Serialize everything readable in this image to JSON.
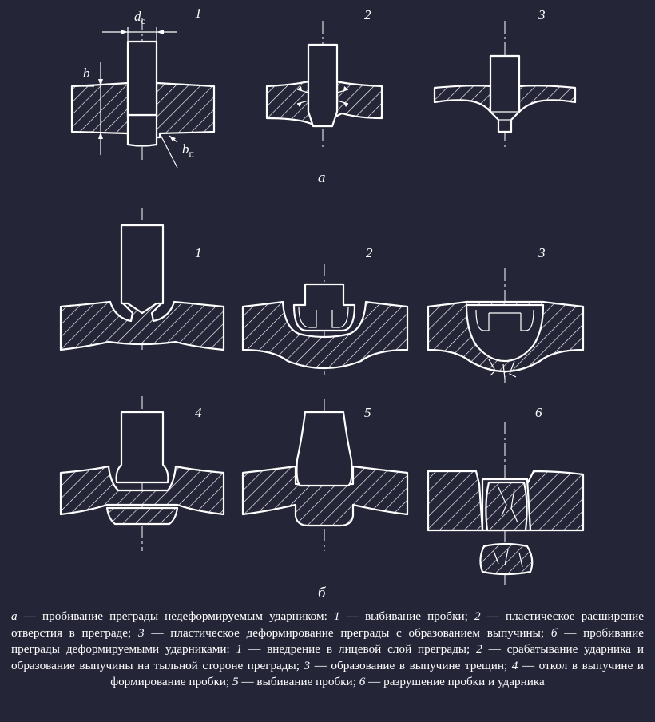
{
  "labels": {
    "dc_main": "d",
    "dc_sub": "c",
    "b": "b",
    "bp_main": "b",
    "bp_sub": "п",
    "row_a_nums": [
      "1",
      "2",
      "3"
    ],
    "row_b1_nums": [
      "1",
      "2",
      "3"
    ],
    "row_b2_nums": [
      "4",
      "5",
      "6"
    ],
    "section_a": "а",
    "section_b": "б"
  },
  "caption": {
    "part_a_letter": "а",
    "part_a_text": " — пробивание преграды недеформируемым ударником: ",
    "a1": "1",
    "a1_text": " — выбивание пробки; ",
    "a2": "2",
    "a2_text": " — пластическое расширение отверстия в преграде; ",
    "a3": "3",
    "a3_text": " — пластическое деформирование преграды с образованием выпучины; ",
    "part_b_letter": "б",
    "part_b_text": " — пробивание преграды деформируемыми ударниками: ",
    "b1": "1",
    "b1_text": " — внедрение в лицевой слой преграды; ",
    "b2": "2",
    "b2_text": " — срабатывание ударника и образование выпучины на тыльной стороне преграды; ",
    "b3": "3",
    "b3_text": " — образование в выпучине трещин; ",
    "b4": "4",
    "b4_text": " — откол в выпучине и формирование пробки; ",
    "b5": "5",
    "b5_text": " — выбивание пробки; ",
    "b6": "6",
    "b6_text": " — разрушение пробки и ударника"
  }
}
